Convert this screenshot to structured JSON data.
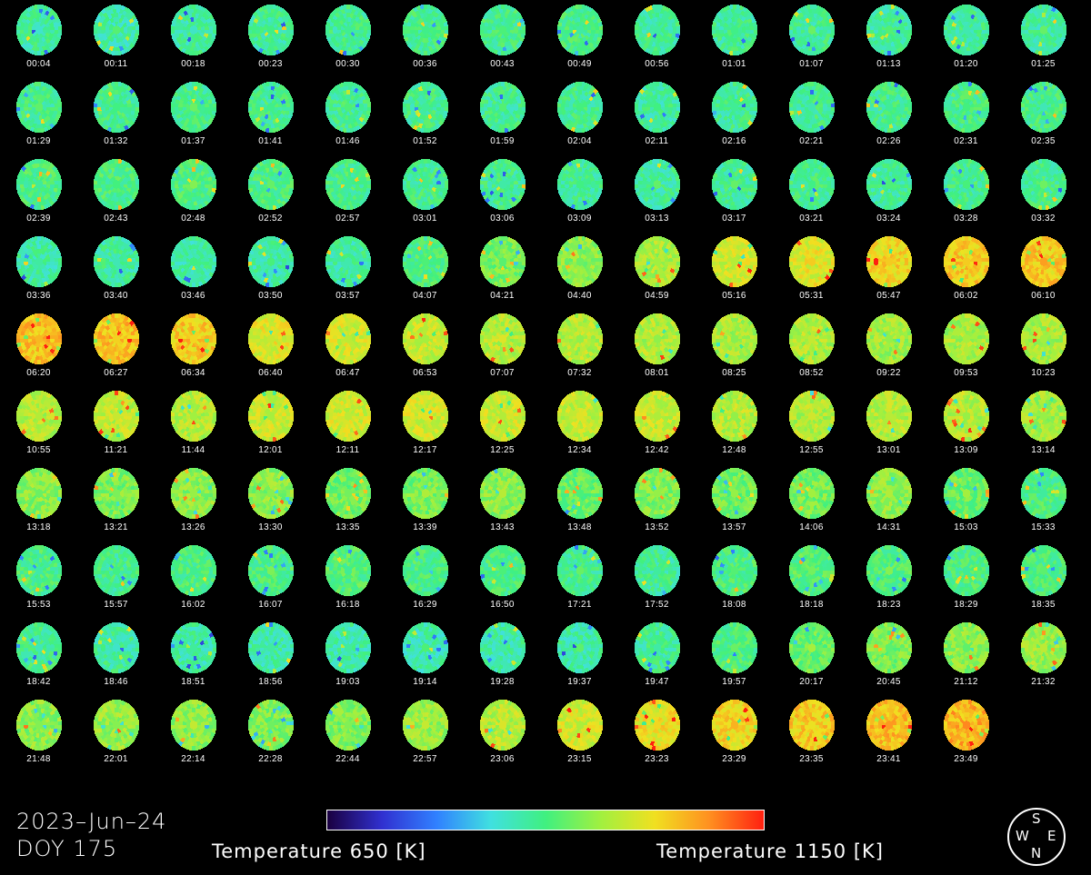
{
  "chart_data": {
    "type": "heatmap",
    "date": "2023–Jun–24",
    "doy": "DOY 175",
    "colorbar": {
      "min_label": "Temperature 650 [K]",
      "max_label": "Temperature 1150 [K]",
      "min": 650,
      "max": 1150,
      "colors": [
        "#1a0040",
        "#3030d0",
        "#3080ff",
        "#40e0e0",
        "#40f080",
        "#a0f040",
        "#f0e020",
        "#ff9020",
        "#ff2010"
      ]
    },
    "compass": {
      "top": "S",
      "bottom": "N",
      "left": "W",
      "right": "E"
    },
    "images": [
      {
        "time": "00:04",
        "level": 0.46
      },
      {
        "time": "00:11",
        "level": 0.45
      },
      {
        "time": "00:18",
        "level": 0.46
      },
      {
        "time": "00:23",
        "level": 0.47
      },
      {
        "time": "00:30",
        "level": 0.48
      },
      {
        "time": "00:36",
        "level": 0.48
      },
      {
        "time": "00:43",
        "level": 0.48
      },
      {
        "time": "00:49",
        "level": 0.49
      },
      {
        "time": "00:56",
        "level": 0.47
      },
      {
        "time": "01:01",
        "level": 0.47
      },
      {
        "time": "01:07",
        "level": 0.47
      },
      {
        "time": "01:13",
        "level": 0.46
      },
      {
        "time": "01:20",
        "level": 0.47
      },
      {
        "time": "01:25",
        "level": 0.46
      },
      {
        "time": "01:29",
        "level": 0.48
      },
      {
        "time": "01:32",
        "level": 0.49
      },
      {
        "time": "01:37",
        "level": 0.48
      },
      {
        "time": "01:41",
        "level": 0.48
      },
      {
        "time": "01:46",
        "level": 0.48
      },
      {
        "time": "01:52",
        "level": 0.48
      },
      {
        "time": "01:59",
        "level": 0.47
      },
      {
        "time": "02:04",
        "level": 0.48
      },
      {
        "time": "02:11",
        "level": 0.46
      },
      {
        "time": "02:16",
        "level": 0.47
      },
      {
        "time": "02:21",
        "level": 0.48
      },
      {
        "time": "02:26",
        "level": 0.48
      },
      {
        "time": "02:31",
        "level": 0.49
      },
      {
        "time": "02:35",
        "level": 0.49
      },
      {
        "time": "02:39",
        "level": 0.5
      },
      {
        "time": "02:43",
        "level": 0.5
      },
      {
        "time": "02:48",
        "level": 0.5
      },
      {
        "time": "02:52",
        "level": 0.5
      },
      {
        "time": "02:57",
        "level": 0.49
      },
      {
        "time": "03:01",
        "level": 0.48
      },
      {
        "time": "03:06",
        "level": 0.48
      },
      {
        "time": "03:09",
        "level": 0.47
      },
      {
        "time": "03:13",
        "level": 0.46
      },
      {
        "time": "03:17",
        "level": 0.47
      },
      {
        "time": "03:21",
        "level": 0.48
      },
      {
        "time": "03:24",
        "level": 0.46
      },
      {
        "time": "03:28",
        "level": 0.48
      },
      {
        "time": "03:32",
        "level": 0.48
      },
      {
        "time": "03:36",
        "level": 0.45
      },
      {
        "time": "03:40",
        "level": 0.46
      },
      {
        "time": "03:46",
        "level": 0.45
      },
      {
        "time": "03:50",
        "level": 0.45
      },
      {
        "time": "03:57",
        "level": 0.46
      },
      {
        "time": "04:07",
        "level": 0.5
      },
      {
        "time": "04:21",
        "level": 0.57
      },
      {
        "time": "04:40",
        "level": 0.6
      },
      {
        "time": "04:59",
        "level": 0.64
      },
      {
        "time": "05:16",
        "level": 0.7
      },
      {
        "time": "05:31",
        "level": 0.72
      },
      {
        "time": "05:47",
        "level": 0.76
      },
      {
        "time": "06:02",
        "level": 0.78
      },
      {
        "time": "06:10",
        "level": 0.78
      },
      {
        "time": "06:20",
        "level": 0.8
      },
      {
        "time": "06:27",
        "level": 0.8
      },
      {
        "time": "06:34",
        "level": 0.78
      },
      {
        "time": "06:40",
        "level": 0.72
      },
      {
        "time": "06:47",
        "level": 0.7
      },
      {
        "time": "06:53",
        "level": 0.68
      },
      {
        "time": "07:07",
        "level": 0.66
      },
      {
        "time": "07:32",
        "level": 0.66
      },
      {
        "time": "08:01",
        "level": 0.65
      },
      {
        "time": "08:25",
        "level": 0.64
      },
      {
        "time": "08:52",
        "level": 0.65
      },
      {
        "time": "09:22",
        "level": 0.63
      },
      {
        "time": "09:53",
        "level": 0.64
      },
      {
        "time": "10:23",
        "level": 0.64
      },
      {
        "time": "10:55",
        "level": 0.66
      },
      {
        "time": "11:21",
        "level": 0.67
      },
      {
        "time": "11:44",
        "level": 0.66
      },
      {
        "time": "12:01",
        "level": 0.69
      },
      {
        "time": "12:11",
        "level": 0.7
      },
      {
        "time": "12:17",
        "level": 0.7
      },
      {
        "time": "12:25",
        "level": 0.69
      },
      {
        "time": "12:34",
        "level": 0.68
      },
      {
        "time": "12:42",
        "level": 0.68
      },
      {
        "time": "12:48",
        "level": 0.66
      },
      {
        "time": "12:55",
        "level": 0.65
      },
      {
        "time": "13:01",
        "level": 0.66
      },
      {
        "time": "13:09",
        "level": 0.66
      },
      {
        "time": "13:14",
        "level": 0.63
      },
      {
        "time": "13:18",
        "level": 0.6
      },
      {
        "time": "13:21",
        "level": 0.58
      },
      {
        "time": "13:26",
        "level": 0.6
      },
      {
        "time": "13:30",
        "level": 0.6
      },
      {
        "time": "13:35",
        "level": 0.56
      },
      {
        "time": "13:39",
        "level": 0.57
      },
      {
        "time": "13:43",
        "level": 0.6
      },
      {
        "time": "13:48",
        "level": 0.55
      },
      {
        "time": "13:52",
        "level": 0.59
      },
      {
        "time": "13:57",
        "level": 0.56
      },
      {
        "time": "14:06",
        "level": 0.57
      },
      {
        "time": "14:31",
        "level": 0.6
      },
      {
        "time": "15:03",
        "level": 0.55
      },
      {
        "time": "15:33",
        "level": 0.5
      },
      {
        "time": "15:53",
        "level": 0.5
      },
      {
        "time": "15:57",
        "level": 0.48
      },
      {
        "time": "16:02",
        "level": 0.5
      },
      {
        "time": "16:07",
        "level": 0.5
      },
      {
        "time": "16:18",
        "level": 0.52
      },
      {
        "time": "16:29",
        "level": 0.5
      },
      {
        "time": "16:50",
        "level": 0.5
      },
      {
        "time": "17:21",
        "level": 0.48
      },
      {
        "time": "17:52",
        "level": 0.47
      },
      {
        "time": "18:08",
        "level": 0.5
      },
      {
        "time": "18:18",
        "level": 0.52
      },
      {
        "time": "18:23",
        "level": 0.51
      },
      {
        "time": "18:29",
        "level": 0.5
      },
      {
        "time": "18:35",
        "level": 0.5
      },
      {
        "time": "18:42",
        "level": 0.48
      },
      {
        "time": "18:46",
        "level": 0.46
      },
      {
        "time": "18:51",
        "level": 0.45
      },
      {
        "time": "18:56",
        "level": 0.45
      },
      {
        "time": "19:03",
        "level": 0.45
      },
      {
        "time": "19:14",
        "level": 0.44
      },
      {
        "time": "19:28",
        "level": 0.45
      },
      {
        "time": "19:37",
        "level": 0.45
      },
      {
        "time": "19:47",
        "level": 0.47
      },
      {
        "time": "19:57",
        "level": 0.5
      },
      {
        "time": "20:17",
        "level": 0.55
      },
      {
        "time": "20:45",
        "level": 0.58
      },
      {
        "time": "21:12",
        "level": 0.6
      },
      {
        "time": "21:32",
        "level": 0.62
      },
      {
        "time": "21:48",
        "level": 0.6
      },
      {
        "time": "22:01",
        "level": 0.62
      },
      {
        "time": "22:14",
        "level": 0.6
      },
      {
        "time": "22:28",
        "level": 0.58
      },
      {
        "time": "22:44",
        "level": 0.58
      },
      {
        "time": "22:57",
        "level": 0.62
      },
      {
        "time": "23:06",
        "level": 0.66
      },
      {
        "time": "23:15",
        "level": 0.7
      },
      {
        "time": "23:23",
        "level": 0.74
      },
      {
        "time": "23:29",
        "level": 0.76
      },
      {
        "time": "23:35",
        "level": 0.78
      },
      {
        "time": "23:41",
        "level": 0.8
      },
      {
        "time": "23:49",
        "level": 0.82
      }
    ]
  }
}
